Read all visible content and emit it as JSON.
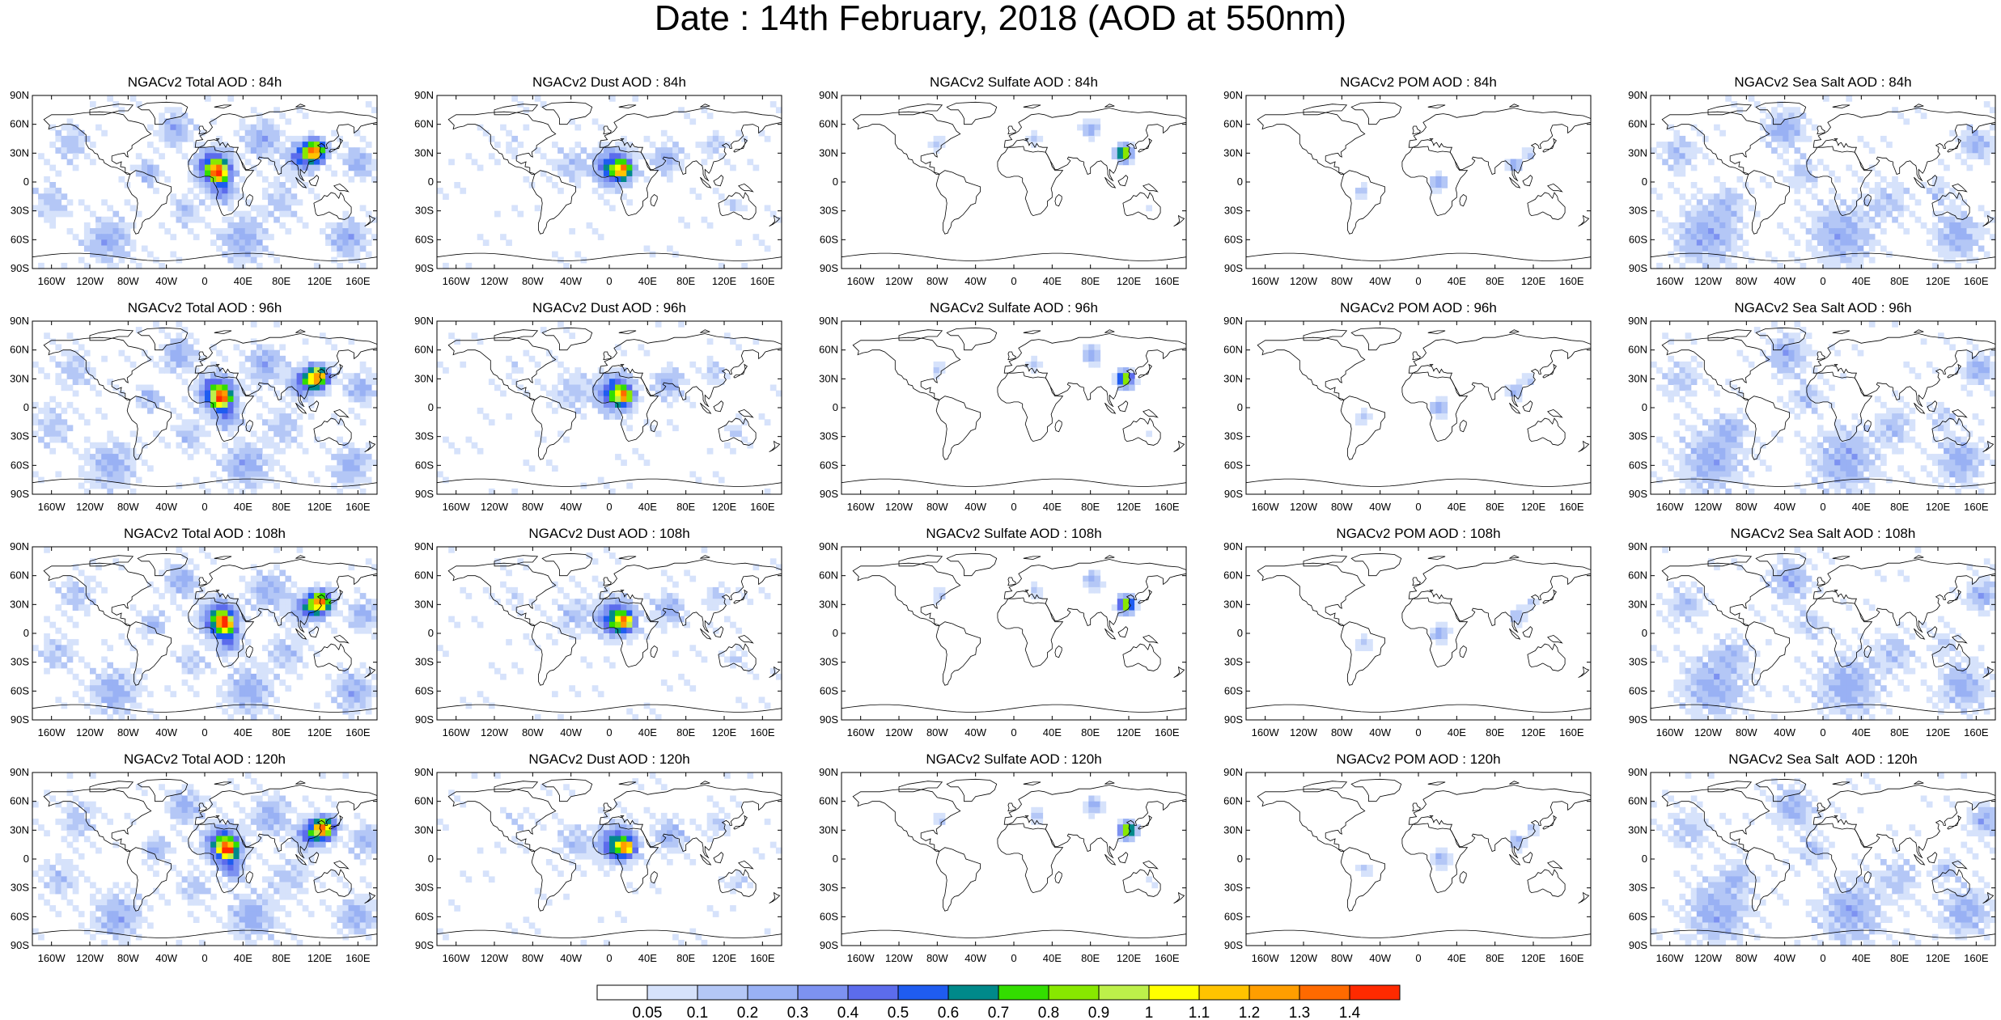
{
  "title": "Date : 14th February, 2018 (AOD at 550nm)",
  "lat_labels": [
    "90N",
    "60N",
    "30N",
    "0",
    "30S",
    "60S",
    "90S"
  ],
  "lon_labels": [
    "160W",
    "120W",
    "80W",
    "40W",
    "0",
    "40E",
    "80E",
    "120E",
    "160E"
  ],
  "species": [
    {
      "key": "total",
      "label": "Total AOD"
    },
    {
      "key": "dust",
      "label": "Dust AOD"
    },
    {
      "key": "sulfate",
      "label": "Sulfate AOD"
    },
    {
      "key": "pom",
      "label": "POM AOD"
    },
    {
      "key": "seasalt",
      "label": "Sea Salt AOD"
    }
  ],
  "forecast_hours": [
    "84h",
    "96h",
    "108h",
    "120h"
  ],
  "panel_titles": [
    [
      "NGACv2 Total AOD : 84h",
      "NGACv2 Dust AOD : 84h",
      "NGACv2 Sulfate AOD : 84h",
      "NGACv2 POM AOD : 84h",
      "NGACv2 Sea Salt AOD : 84h"
    ],
    [
      "NGACv2 Total AOD : 96h",
      "NGACv2 Dust AOD : 96h",
      "NGACv2 Sulfate AOD : 96h",
      "NGACv2 POM AOD : 96h",
      "NGACv2 Sea Salt AOD : 96h"
    ],
    [
      "NGACv2 Total AOD : 108h",
      "NGACv2 Dust AOD : 108h",
      "NGACv2 Sulfate AOD : 108h",
      "NGACv2 POM AOD : 108h",
      "NGACv2 Sea Salt AOD : 108h"
    ],
    [
      "NGACv2 Total AOD : 120h",
      "NGACv2 Dust AOD : 120h",
      "NGACv2 Sulfate AOD : 120h",
      "NGACv2 POM AOD : 120h",
      "NGACv2 Sea Salt  AOD : 120h"
    ]
  ],
  "colorbar": {
    "labels": [
      "0.05",
      "0.1",
      "0.2",
      "0.3",
      "0.4",
      "0.5",
      "0.6",
      "0.7",
      "0.8",
      "0.9",
      "1",
      "1.1",
      "1.2",
      "1.3",
      "1.4"
    ],
    "colors": [
      "#ffffff",
      "#d6e2fb",
      "#b4c7f6",
      "#99b1f4",
      "#7d92f1",
      "#5c6cec",
      "#1f5cf0",
      "#00898a",
      "#33dd00",
      "#88e800",
      "#bdf04a",
      "#ffff00",
      "#ffc300",
      "#ff9e00",
      "#ff6a00",
      "#ff2a00"
    ]
  },
  "color_legend": {
    "map_background": "#ffffff",
    "coastline": "#000000"
  }
}
